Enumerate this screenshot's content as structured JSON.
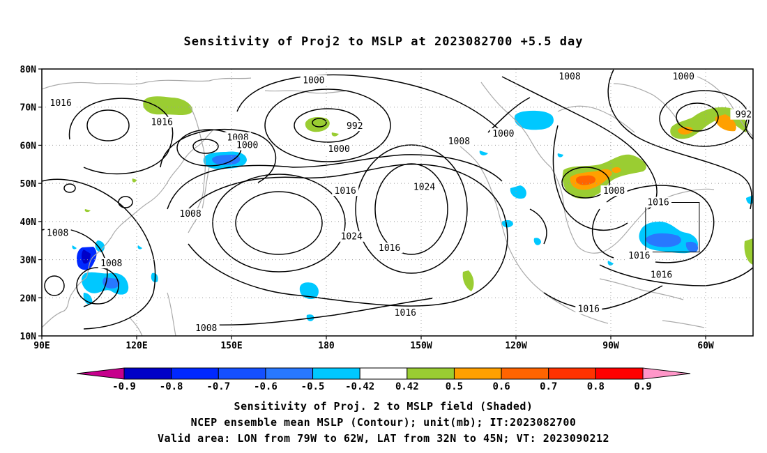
{
  "title": "Sensitivity of Proj2 to MSLP at 2023082700 +5.5 day",
  "lat_labels": [
    "80N",
    "70N",
    "60N",
    "50N",
    "40N",
    "30N",
    "20N",
    "10N"
  ],
  "lon_labels": [
    "90E",
    "120E",
    "150E",
    "180",
    "150W",
    "120W",
    "90W",
    "60W"
  ],
  "contour_labels": [
    {
      "text": "1016",
      "lon": 96,
      "lat": 71
    },
    {
      "text": "1016",
      "lon": 128,
      "lat": 66
    },
    {
      "text": "1008",
      "lon": 152,
      "lat": 62
    },
    {
      "text": "1000",
      "lon": 155,
      "lat": 60
    },
    {
      "text": "1000",
      "lon": 176,
      "lat": 77
    },
    {
      "text": "992",
      "lon": -171,
      "lat": 65
    },
    {
      "text": "1000",
      "lon": -176,
      "lat": 59
    },
    {
      "text": "1008",
      "lon": -138,
      "lat": 61
    },
    {
      "text": "1000",
      "lon": -124,
      "lat": 63
    },
    {
      "text": "1008",
      "lon": -103,
      "lat": 78
    },
    {
      "text": "1000",
      "lon": -67,
      "lat": 78
    },
    {
      "text": "992",
      "lon": -48,
      "lat": 68
    },
    {
      "text": "1016",
      "lon": -174,
      "lat": 48
    },
    {
      "text": "1024",
      "lon": -149,
      "lat": 49
    },
    {
      "text": "1024",
      "lon": -172,
      "lat": 36
    },
    {
      "text": "1016",
      "lon": -160,
      "lat": 33
    },
    {
      "text": "1016",
      "lon": -155,
      "lat": 16
    },
    {
      "text": "1008",
      "lon": 137,
      "lat": 42
    },
    {
      "text": "1008",
      "lon": 95,
      "lat": 37
    },
    {
      "text": "1008",
      "lon": 112,
      "lat": 29
    },
    {
      "text": "1008",
      "lon": 142,
      "lat": 12
    },
    {
      "text": "1008",
      "lon": -89,
      "lat": 48
    },
    {
      "text": "1016",
      "lon": -75,
      "lat": 45
    },
    {
      "text": "1016",
      "lon": -81,
      "lat": 31
    },
    {
      "text": "1016",
      "lon": -74,
      "lat": 26
    },
    {
      "text": "1016",
      "lon": -97,
      "lat": 17
    }
  ],
  "valid_area": {
    "lon_min": -79,
    "lon_max": -62,
    "lat_min": 32,
    "lat_max": 45
  },
  "colorbar": {
    "labels": [
      "-0.9",
      "-0.8",
      "-0.7",
      "-0.6",
      "-0.5",
      "-0.42",
      "0.42",
      "0.5",
      "0.6",
      "0.7",
      "0.8",
      "0.9"
    ],
    "colors": [
      "#c6008c",
      "#0000c8",
      "#0028ff",
      "#1450ff",
      "#2878ff",
      "#00c8ff",
      "#ffffff",
      "#9acd32",
      "#ffa000",
      "#ff6400",
      "#ff3200",
      "#ff0000",
      "#ff96c8"
    ]
  },
  "caption": {
    "line1": "Sensitivity of Proj. 2 to MSLP field (Shaded)",
    "line2": "NCEP ensemble mean MSLP (Contour); unit(mb); IT:2023082700",
    "line3": "Valid area: LON from 79W to 62W, LAT from 32N to 45N; VT: 2023090212"
  }
}
